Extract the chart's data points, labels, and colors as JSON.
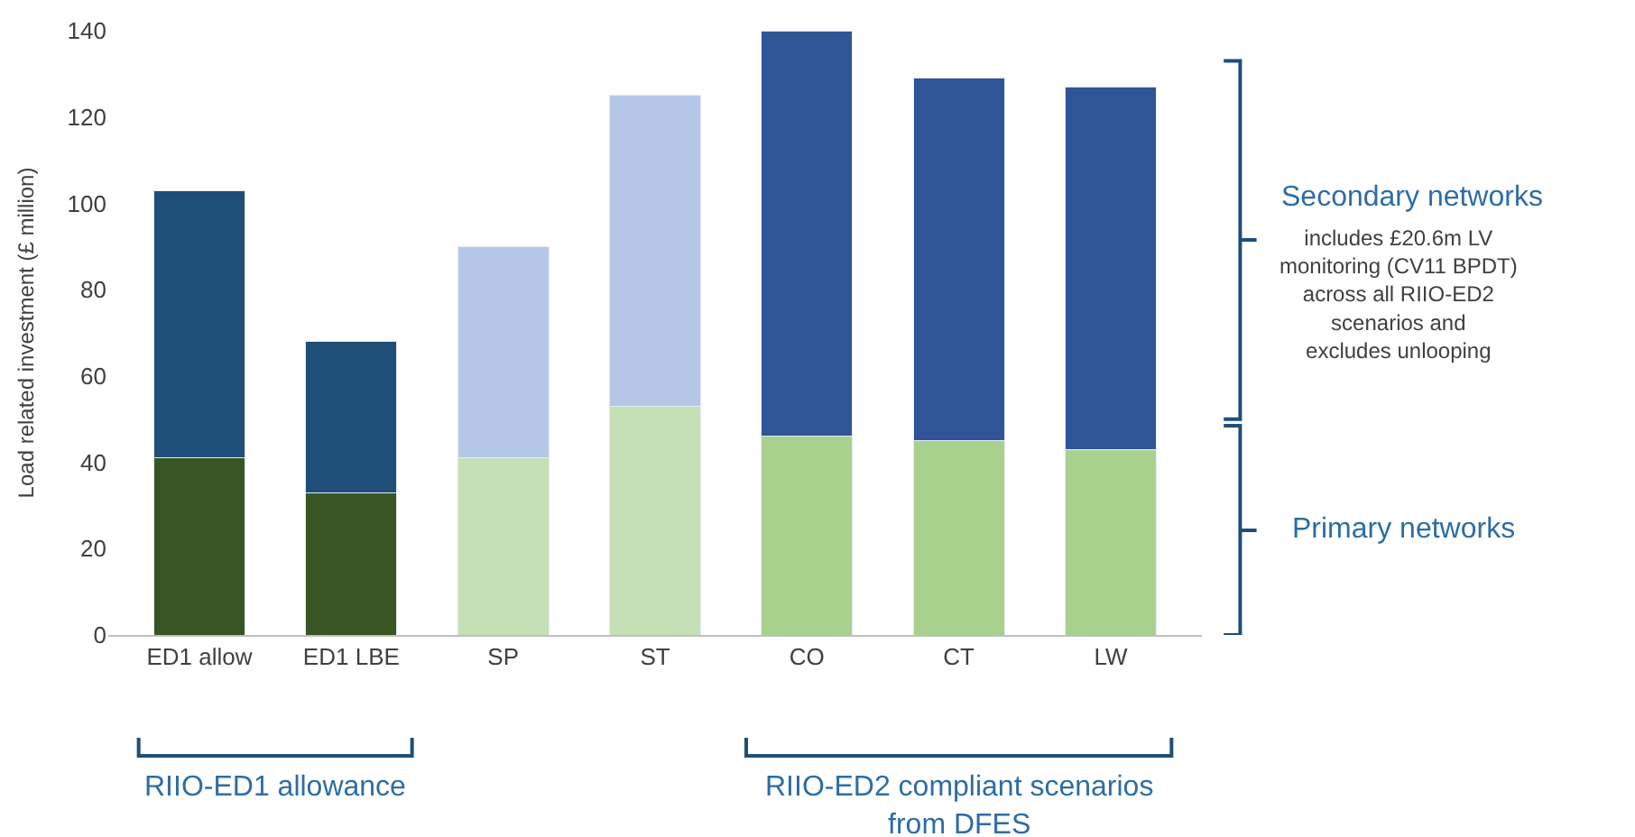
{
  "chart_data": {
    "type": "bar",
    "stacked": true,
    "ylabel": "Load related investment (£ million)",
    "categories": [
      "ED1 allow",
      "ED1 LBE",
      "SP",
      "ST",
      "CO",
      "CT",
      "LW"
    ],
    "series": [
      {
        "colors": [
          "#375623",
          "#375623",
          "#c5e0b4",
          "#c5e0b4",
          "#a9d18e",
          "#a9d18e",
          "#a9d18e"
        ],
        "values": [
          41,
          33,
          41,
          53,
          46,
          45,
          43
        ]
      },
      {
        "colors": [
          "#1f4e79",
          "#1f4e79",
          "#b4c7e7",
          "#b4c7e7",
          "#2f5597",
          "#2f5597",
          "#2f5597"
        ],
        "values": [
          62,
          35,
          49,
          72,
          94,
          84,
          84
        ]
      }
    ],
    "ylim": [
      0,
      140
    ],
    "yticks": [
      0,
      20,
      40,
      60,
      80,
      100,
      120,
      140
    ],
    "annotations": [
      "Secondary networks",
      "includes £20.6m LV\nmonitoring (CV11 BPDT)\nacross all RIIO-ED2\nscenarios and\nexcludes unlooping",
      "Primary networks",
      "RIIO-ED1 allowance",
      "RIIO-ED2 compliant scenarios\nfrom DFES"
    ]
  }
}
